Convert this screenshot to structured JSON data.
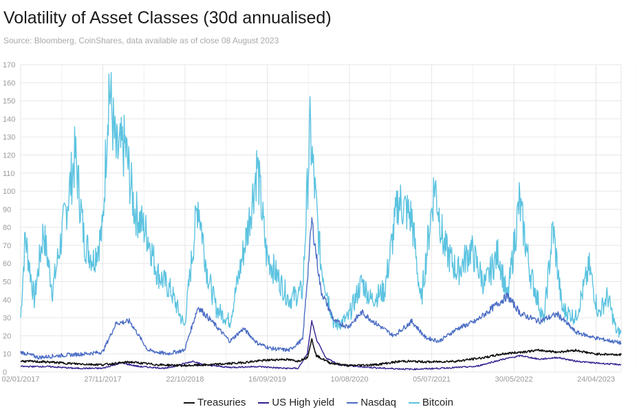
{
  "title": "Volatility of Asset Classes (30d annualised)",
  "subtitle": "Source: Bloomberg, CoinShares, data available as of close 08 August 2023",
  "chart_data": {
    "type": "line",
    "title": "Volatility of Asset Classes (30d annualised)",
    "xlabel": "",
    "ylabel": "",
    "ylim": [
      0,
      170
    ],
    "yticks": [
      0,
      10,
      20,
      30,
      40,
      50,
      60,
      70,
      80,
      90,
      100,
      110,
      120,
      130,
      140,
      150,
      160,
      170
    ],
    "xticks": [
      "02/01/2017",
      "27/11/2017",
      "22/10/2018",
      "16/09/2019",
      "10/08/2020",
      "05/07/2021",
      "30/05/2022",
      "24/04/2023"
    ],
    "x_range_years": [
      2017.0,
      2023.6
    ],
    "grid": true,
    "legend_position": "bottom",
    "series": [
      {
        "name": "Treasuries",
        "color": "#111111",
        "points": [
          [
            2017.0,
            6
          ],
          [
            2017.3,
            5.5
          ],
          [
            2017.6,
            4.5
          ],
          [
            2017.9,
            4
          ],
          [
            2018.2,
            5.5
          ],
          [
            2018.5,
            4
          ],
          [
            2018.8,
            3.5
          ],
          [
            2019.1,
            4
          ],
          [
            2019.4,
            5
          ],
          [
            2019.7,
            6.5
          ],
          [
            2019.9,
            7
          ],
          [
            2020.05,
            6
          ],
          [
            2020.15,
            8
          ],
          [
            2020.2,
            18
          ],
          [
            2020.25,
            9
          ],
          [
            2020.4,
            5
          ],
          [
            2020.6,
            3.5
          ],
          [
            2020.9,
            4
          ],
          [
            2021.2,
            6
          ],
          [
            2021.5,
            5.5
          ],
          [
            2021.8,
            6
          ],
          [
            2022.1,
            8
          ],
          [
            2022.3,
            10
          ],
          [
            2022.5,
            11
          ],
          [
            2022.7,
            12
          ],
          [
            2022.9,
            11
          ],
          [
            2023.1,
            12
          ],
          [
            2023.3,
            10
          ],
          [
            2023.6,
            9.5
          ]
        ]
      },
      {
        "name": "US High yield",
        "color": "#33208f",
        "points": [
          [
            2017.0,
            3
          ],
          [
            2017.3,
            3
          ],
          [
            2017.6,
            2
          ],
          [
            2017.9,
            2
          ],
          [
            2018.1,
            5
          ],
          [
            2018.3,
            3
          ],
          [
            2018.6,
            2
          ],
          [
            2018.9,
            6
          ],
          [
            2019.0,
            4
          ],
          [
            2019.3,
            2.5
          ],
          [
            2019.6,
            3
          ],
          [
            2019.9,
            2
          ],
          [
            2020.05,
            2
          ],
          [
            2020.15,
            10
          ],
          [
            2020.2,
            28
          ],
          [
            2020.25,
            18
          ],
          [
            2020.35,
            8
          ],
          [
            2020.5,
            4
          ],
          [
            2020.7,
            3
          ],
          [
            2021.0,
            2
          ],
          [
            2021.3,
            1.5
          ],
          [
            2021.6,
            2
          ],
          [
            2022.0,
            3
          ],
          [
            2022.3,
            7
          ],
          [
            2022.5,
            9
          ],
          [
            2022.7,
            7
          ],
          [
            2022.9,
            8
          ],
          [
            2023.1,
            6
          ],
          [
            2023.3,
            5
          ],
          [
            2023.6,
            4
          ]
        ]
      },
      {
        "name": "Nasdaq",
        "color": "#4a6cc4",
        "points": [
          [
            2017.0,
            11
          ],
          [
            2017.2,
            8
          ],
          [
            2017.4,
            9
          ],
          [
            2017.7,
            10
          ],
          [
            2017.9,
            11
          ],
          [
            2018.05,
            27
          ],
          [
            2018.2,
            28
          ],
          [
            2018.4,
            12
          ],
          [
            2018.6,
            10
          ],
          [
            2018.8,
            12
          ],
          [
            2018.95,
            36
          ],
          [
            2019.1,
            28
          ],
          [
            2019.3,
            17
          ],
          [
            2019.45,
            24
          ],
          [
            2019.6,
            16
          ],
          [
            2019.75,
            13
          ],
          [
            2019.95,
            12
          ],
          [
            2020.1,
            18
          ],
          [
            2020.2,
            84
          ],
          [
            2020.3,
            45
          ],
          [
            2020.45,
            28
          ],
          [
            2020.6,
            25
          ],
          [
            2020.75,
            33
          ],
          [
            2020.9,
            27
          ],
          [
            2021.1,
            20
          ],
          [
            2021.3,
            28
          ],
          [
            2021.45,
            19
          ],
          [
            2021.6,
            17
          ],
          [
            2021.8,
            24
          ],
          [
            2022.0,
            28
          ],
          [
            2022.2,
            36
          ],
          [
            2022.35,
            42
          ],
          [
            2022.5,
            32
          ],
          [
            2022.7,
            28
          ],
          [
            2022.9,
            32
          ],
          [
            2023.1,
            22
          ],
          [
            2023.3,
            19
          ],
          [
            2023.6,
            16
          ]
        ]
      },
      {
        "name": "Bitcoin",
        "color": "#5cc3e0",
        "points": [
          [
            2017.0,
            30
          ],
          [
            2017.05,
            75
          ],
          [
            2017.15,
            40
          ],
          [
            2017.25,
            78
          ],
          [
            2017.35,
            45
          ],
          [
            2017.5,
            90
          ],
          [
            2017.6,
            120
          ],
          [
            2017.7,
            72
          ],
          [
            2017.8,
            62
          ],
          [
            2017.9,
            78
          ],
          [
            2017.97,
            160
          ],
          [
            2018.05,
            120
          ],
          [
            2018.15,
            125
          ],
          [
            2018.25,
            90
          ],
          [
            2018.4,
            75
          ],
          [
            2018.5,
            55
          ],
          [
            2018.65,
            45
          ],
          [
            2018.8,
            25
          ],
          [
            2018.95,
            95
          ],
          [
            2019.05,
            55
          ],
          [
            2019.15,
            35
          ],
          [
            2019.3,
            28
          ],
          [
            2019.5,
            80
          ],
          [
            2019.6,
            115
          ],
          [
            2019.7,
            65
          ],
          [
            2019.8,
            55
          ],
          [
            2019.95,
            40
          ],
          [
            2020.1,
            45
          ],
          [
            2020.18,
            133
          ],
          [
            2020.3,
            60
          ],
          [
            2020.45,
            25
          ],
          [
            2020.6,
            30
          ],
          [
            2020.75,
            50
          ],
          [
            2020.85,
            40
          ],
          [
            2021.0,
            45
          ],
          [
            2021.15,
            95
          ],
          [
            2021.3,
            85
          ],
          [
            2021.4,
            38
          ],
          [
            2021.55,
            105
          ],
          [
            2021.65,
            70
          ],
          [
            2021.8,
            55
          ],
          [
            2021.95,
            68
          ],
          [
            2022.1,
            48
          ],
          [
            2022.25,
            66
          ],
          [
            2022.35,
            40
          ],
          [
            2022.48,
            94
          ],
          [
            2022.6,
            55
          ],
          [
            2022.75,
            28
          ],
          [
            2022.85,
            80
          ],
          [
            2022.95,
            35
          ],
          [
            2023.1,
            30
          ],
          [
            2023.25,
            58
          ],
          [
            2023.35,
            32
          ],
          [
            2023.45,
            42
          ],
          [
            2023.55,
            22
          ],
          [
            2023.6,
            22
          ]
        ]
      }
    ]
  }
}
